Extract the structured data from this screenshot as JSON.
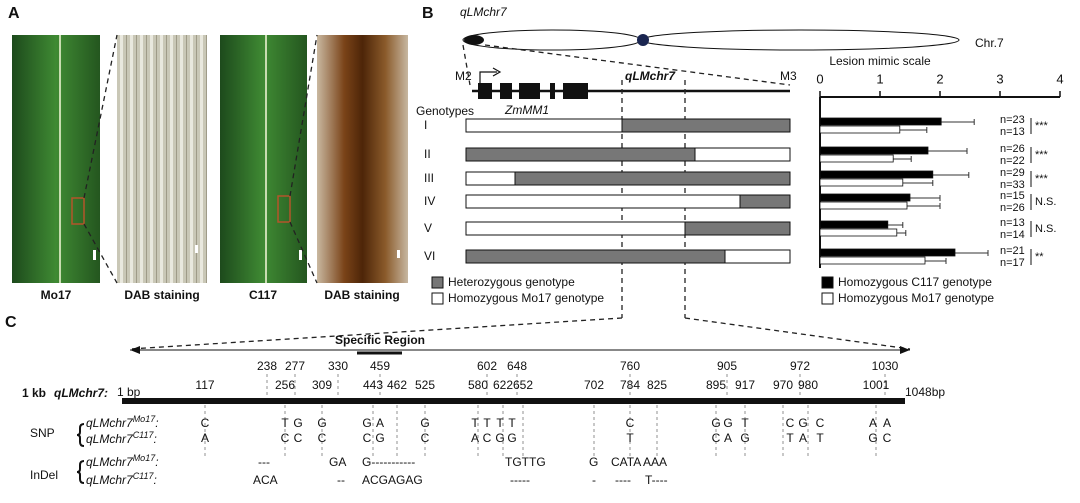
{
  "panel_a": {
    "label": "A",
    "images": [
      "Mo17",
      "DAB staining",
      "C117",
      "DAB staining"
    ]
  },
  "panel_b": {
    "label": "B",
    "chromosome_locus": "qLMchr7",
    "chromosome": "Chr.7",
    "left_marker": "M2",
    "gene": "ZmMM1",
    "locus": "qLMchr7",
    "right_marker": "M3",
    "genotypes_header": "Genotypes",
    "legend": [
      "Heterozygous genotype",
      "Homozygous Mo17 genotype"
    ]
  },
  "chart_data": {
    "type": "bar",
    "orientation": "horizontal",
    "x_label": "Lesion mimic scale",
    "categories": [
      "I",
      "II",
      "III",
      "IV",
      "V",
      "VI"
    ],
    "xlim": [
      0,
      4
    ],
    "xticks": [
      0,
      1,
      2,
      3,
      4
    ],
    "series": [
      {
        "name": "Homozygous C117 genotype",
        "color": "#000000",
        "values": [
          2.02,
          1.8,
          1.88,
          1.5,
          1.13,
          2.25
        ],
        "errors": [
          0.55,
          0.65,
          0.6,
          0.5,
          0.25,
          0.55
        ]
      },
      {
        "name": "Homozygous Mo17 genotype",
        "color": "#ffffff",
        "values": [
          1.33,
          1.22,
          1.38,
          1.45,
          1.28,
          1.75
        ],
        "errors": [
          0.45,
          0.3,
          0.5,
          0.55,
          0.15,
          0.35
        ]
      }
    ],
    "n_labels": [
      [
        "n=23",
        "n=13"
      ],
      [
        "n=26",
        "n=22"
      ],
      [
        "n=29",
        "n=33"
      ],
      [
        "n=15",
        "n=26"
      ],
      [
        "n=13",
        "n=14"
      ],
      [
        "n=21",
        "n=17"
      ]
    ],
    "significance": [
      "***",
      "***",
      "***",
      "N.S.",
      "N.S.",
      "**"
    ]
  },
  "panel_c": {
    "label": "C",
    "region": "Specific Region",
    "map_prefix": "1 kb",
    "map_name": "qLMchr7:",
    "start": "1 bp",
    "end": "1048bp",
    "top_positions": [
      238,
      277,
      330,
      459,
      602,
      648,
      760,
      905,
      972,
      1030
    ],
    "bottom_positions": [
      117,
      256,
      309,
      443,
      462,
      525,
      580,
      622,
      652,
      702,
      784,
      825,
      895,
      917,
      970,
      980,
      1001
    ],
    "snp": {
      "label": "SNP",
      "mo17": [
        "C",
        "T",
        "G",
        "G",
        "G",
        "A",
        "G",
        "T",
        "T",
        "T",
        "T",
        "C",
        "G",
        "G",
        "T",
        "C",
        "G",
        "C",
        "A",
        "A"
      ],
      "c117": [
        "A",
        "C",
        "C",
        "C",
        "C",
        "G",
        "C",
        "A",
        "C",
        "G",
        "G",
        "T",
        "C",
        "A",
        "G",
        "T",
        "A",
        "T",
        "G",
        "C"
      ]
    },
    "indel": {
      "label": "InDel",
      "mo17": [
        "---",
        "GA",
        "G-----------",
        "TGTTG",
        "G",
        "CATA",
        "AAA"
      ],
      "c117": [
        "ACA",
        "--",
        "ACGAGAG",
        "-----",
        "-",
        "----",
        "T----"
      ]
    },
    "row_labels": [
      {
        "locus": "qLMchr7",
        "strain": "Mo17",
        "suffix": ":"
      },
      {
        "locus": "qLMchr7",
        "strain": "C117",
        "suffix": ":"
      }
    ]
  }
}
